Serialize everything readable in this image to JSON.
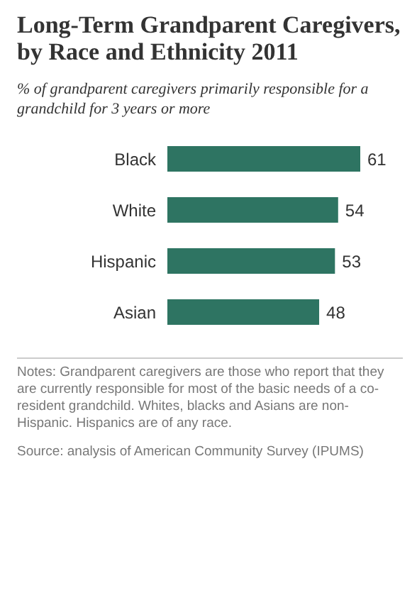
{
  "chart_data": {
    "type": "bar",
    "orientation": "horizontal",
    "title": "Long-Term Grandparent Caregivers, by Race and Ethnicity 2011",
    "subtitle": "% of grandparent caregivers primarily responsible for a grandchild for 3 years or more",
    "categories": [
      "Black",
      "White",
      "Hispanic",
      "Asian"
    ],
    "values": [
      61,
      54,
      53,
      48
    ],
    "color": "#2e7462",
    "data_labels": true,
    "annotations": [
      "Notes: Grandparent caregivers are those who report that they are currently responsible for most of the basic needs of a co-resident grandchild. Whites, blacks and Asians are non-Hispanic. Hispanics are of any race.",
      "Source: analysis of American Community Survey (IPUMS)"
    ]
  }
}
